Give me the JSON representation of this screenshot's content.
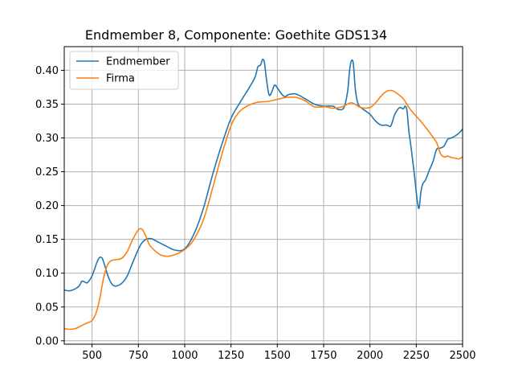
{
  "chart_data": {
    "type": "line",
    "title": "Endmember 8, Componente: Goethite GDS134",
    "xlabel": "",
    "ylabel": "",
    "xlim": [
      350,
      2500
    ],
    "ylim": [
      -0.005,
      0.435
    ],
    "x_ticks": [
      500,
      750,
      1000,
      1250,
      1500,
      1750,
      2000,
      2250,
      2500
    ],
    "x_tick_labels": [
      "500",
      "750",
      "1000",
      "1250",
      "1500",
      "1750",
      "2000",
      "2250",
      "2500"
    ],
    "y_ticks": [
      0.0,
      0.05,
      0.1,
      0.15,
      0.2,
      0.25,
      0.3,
      0.35,
      0.4
    ],
    "y_tick_labels": [
      "0.00",
      "0.05",
      "0.10",
      "0.15",
      "0.20",
      "0.25",
      "0.30",
      "0.35",
      "0.40"
    ],
    "grid": true,
    "legend_position": "top-left",
    "series": [
      {
        "name": "Endmember",
        "color": "#1f77b4",
        "x": [
          350,
          380,
          410,
          430,
          445,
          460,
          475,
          500,
          525,
          540,
          555,
          570,
          590,
          610,
          630,
          660,
          690,
          720,
          760,
          790,
          820,
          850,
          900,
          950,
          1000,
          1050,
          1100,
          1150,
          1200,
          1250,
          1300,
          1350,
          1380,
          1395,
          1410,
          1420,
          1430,
          1440,
          1455,
          1470,
          1485,
          1500,
          1520,
          1540,
          1560,
          1600,
          1650,
          1700,
          1750,
          1800,
          1830,
          1860,
          1880,
          1890,
          1900,
          1910,
          1920,
          1930,
          1940,
          1960,
          2000,
          2030,
          2060,
          2090,
          2110,
          2120,
          2130,
          2140,
          2160,
          2180,
          2190,
          2200,
          2210,
          2220,
          2240,
          2255,
          2265,
          2275,
          2285,
          2300,
          2320,
          2340,
          2360,
          2380,
          2400,
          2420,
          2440,
          2460,
          2480,
          2500
        ],
        "values": [
          0.075,
          0.074,
          0.077,
          0.081,
          0.088,
          0.087,
          0.086,
          0.096,
          0.115,
          0.123,
          0.122,
          0.11,
          0.093,
          0.083,
          0.081,
          0.085,
          0.096,
          0.116,
          0.141,
          0.15,
          0.151,
          0.147,
          0.14,
          0.134,
          0.136,
          0.158,
          0.195,
          0.245,
          0.29,
          0.329,
          0.353,
          0.375,
          0.39,
          0.405,
          0.408,
          0.416,
          0.412,
          0.39,
          0.364,
          0.368,
          0.378,
          0.374,
          0.366,
          0.361,
          0.364,
          0.365,
          0.358,
          0.35,
          0.347,
          0.347,
          0.342,
          0.345,
          0.37,
          0.4,
          0.414,
          0.41,
          0.375,
          0.356,
          0.348,
          0.343,
          0.335,
          0.325,
          0.319,
          0.319,
          0.317,
          0.323,
          0.332,
          0.338,
          0.345,
          0.343,
          0.347,
          0.34,
          0.31,
          0.29,
          0.245,
          0.208,
          0.196,
          0.22,
          0.232,
          0.238,
          0.252,
          0.265,
          0.283,
          0.285,
          0.288,
          0.298,
          0.3,
          0.303,
          0.307,
          0.313
        ]
      },
      {
        "name": "Firma",
        "color": "#ff7f0e",
        "x": [
          350,
          380,
          410,
          440,
          470,
          500,
          520,
          540,
          560,
          580,
          600,
          630,
          660,
          690,
          720,
          750,
          770,
          790,
          810,
          840,
          870,
          900,
          930,
          970,
          1010,
          1050,
          1100,
          1150,
          1200,
          1250,
          1290,
          1330,
          1370,
          1400,
          1450,
          1500,
          1550,
          1600,
          1650,
          1700,
          1760,
          1800,
          1850,
          1900,
          1950,
          2000,
          2030,
          2060,
          2090,
          2120,
          2150,
          2180,
          2210,
          2240,
          2270,
          2300,
          2330,
          2360,
          2380,
          2400,
          2420,
          2440,
          2460,
          2480,
          2500
        ],
        "values": [
          0.018,
          0.017,
          0.018,
          0.022,
          0.026,
          0.03,
          0.04,
          0.06,
          0.09,
          0.11,
          0.118,
          0.12,
          0.122,
          0.132,
          0.15,
          0.164,
          0.165,
          0.155,
          0.142,
          0.133,
          0.127,
          0.125,
          0.126,
          0.13,
          0.137,
          0.15,
          0.178,
          0.225,
          0.275,
          0.318,
          0.337,
          0.346,
          0.351,
          0.353,
          0.354,
          0.357,
          0.36,
          0.36,
          0.355,
          0.346,
          0.346,
          0.344,
          0.346,
          0.352,
          0.345,
          0.345,
          0.352,
          0.362,
          0.369,
          0.37,
          0.365,
          0.358,
          0.345,
          0.335,
          0.326,
          0.316,
          0.305,
          0.293,
          0.277,
          0.272,
          0.273,
          0.271,
          0.27,
          0.269,
          0.272
        ]
      }
    ]
  }
}
